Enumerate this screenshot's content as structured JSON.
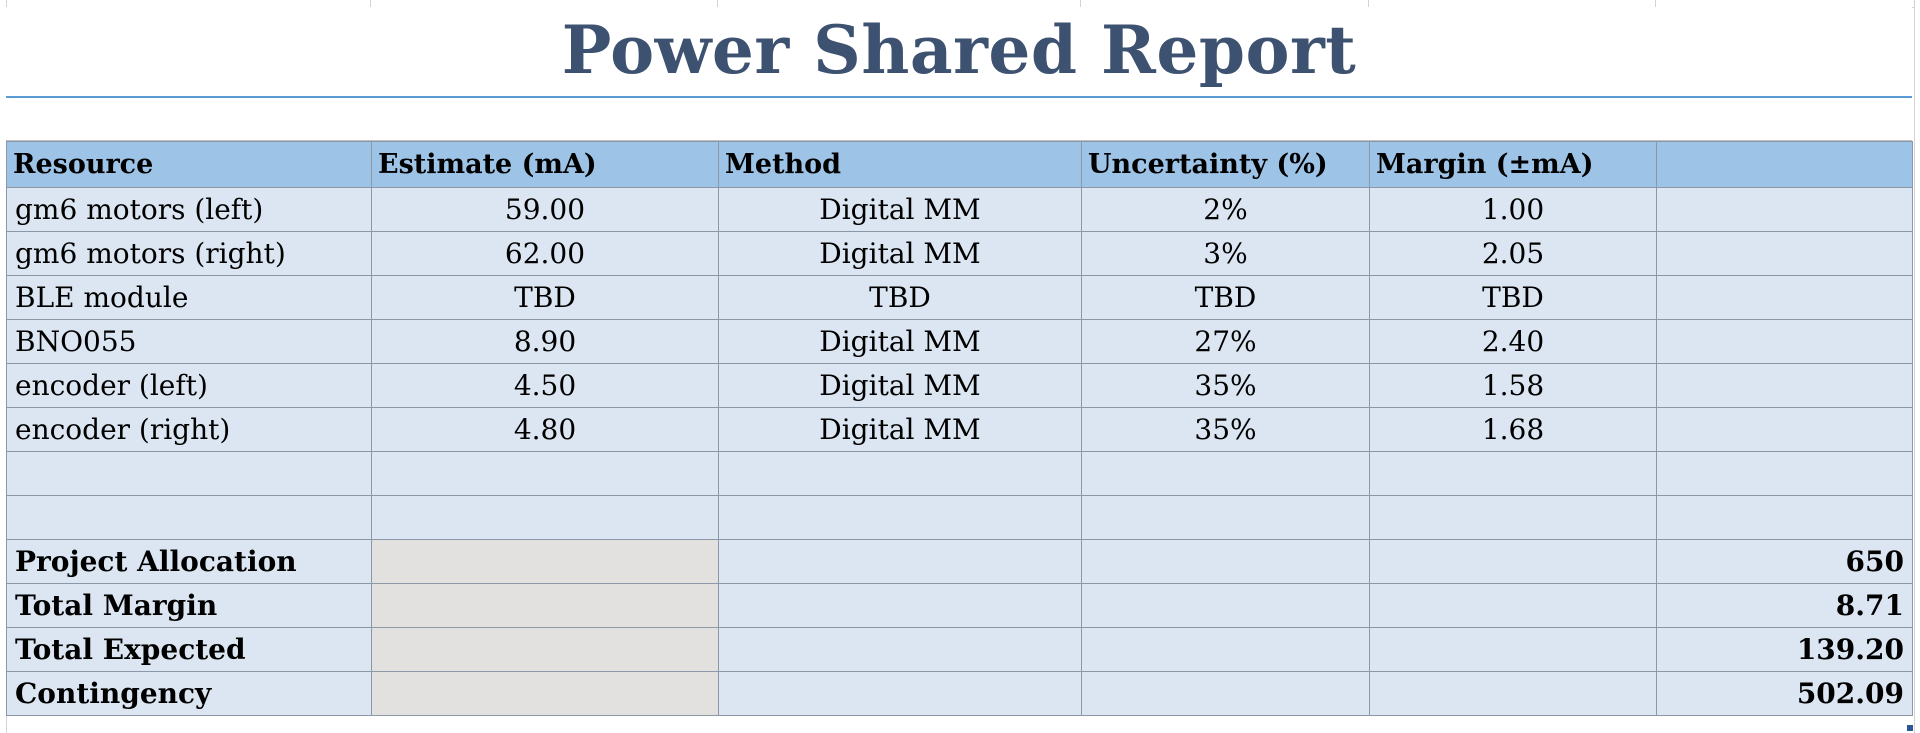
{
  "title": "Power Shared Report",
  "table": {
    "headers": [
      "Resource",
      "Estimate  (mA)",
      "Method",
      "Uncertainty (%)",
      "Margin (±mA)",
      ""
    ],
    "rows": [
      {
        "resource": "gm6 motors (left)",
        "estimate": "59.00",
        "method": "Digital MM",
        "uncertainty": "2%",
        "margin": "1.00",
        "extra": ""
      },
      {
        "resource": "gm6 motors (right)",
        "estimate": "62.00",
        "method": "Digital MM",
        "uncertainty": "3%",
        "margin": "2.05",
        "extra": ""
      },
      {
        "resource": "BLE module",
        "estimate": "TBD",
        "method": "TBD",
        "uncertainty": "TBD",
        "margin": "TBD",
        "extra": ""
      },
      {
        "resource": "BNO055",
        "estimate": "8.90",
        "method": "Digital MM",
        "uncertainty": "27%",
        "margin": "2.40",
        "extra": ""
      },
      {
        "resource": "encoder (left)",
        "estimate": "4.50",
        "method": "Digital MM",
        "uncertainty": "35%",
        "margin": "1.58",
        "extra": ""
      },
      {
        "resource": "encoder (right)",
        "estimate": "4.80",
        "method": "Digital MM",
        "uncertainty": "35%",
        "margin": "1.68",
        "extra": ""
      },
      {
        "resource": "",
        "estimate": "",
        "method": "",
        "uncertainty": "",
        "margin": "",
        "extra": ""
      },
      {
        "resource": "",
        "estimate": "",
        "method": "",
        "uncertainty": "",
        "margin": "",
        "extra": ""
      }
    ],
    "summary": [
      {
        "label": "Project Allocation",
        "value": "650"
      },
      {
        "label": "Total Margin",
        "value": "8.71"
      },
      {
        "label": "Total Expected",
        "value": "139.20"
      },
      {
        "label": "Contingency",
        "value": "502.09"
      }
    ]
  },
  "colors": {
    "title": "#3d5170",
    "header_fill": "#9dc3e6",
    "body_fill": "#dce6f2",
    "summary_gray": "#e3e0e0",
    "title_rule": "#5b9bd5"
  }
}
